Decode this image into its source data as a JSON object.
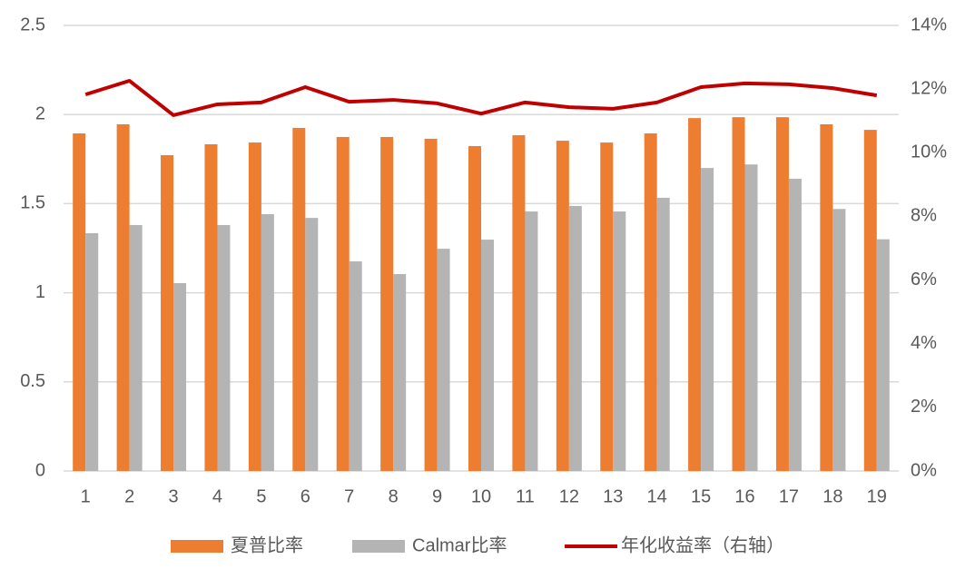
{
  "chart_data": {
    "type": "bar",
    "categories": [
      "1",
      "2",
      "3",
      "4",
      "5",
      "6",
      "7",
      "8",
      "9",
      "10",
      "11",
      "12",
      "13",
      "14",
      "15",
      "16",
      "17",
      "18",
      "19"
    ],
    "series": [
      {
        "name": "夏普比率",
        "color": "#ed7d31",
        "values": [
          1.894,
          1.945,
          1.772,
          1.833,
          1.843,
          1.925,
          1.874,
          1.874,
          1.864,
          1.823,
          1.884,
          1.853,
          1.843,
          1.894,
          1.98,
          1.985,
          1.985,
          1.945,
          1.914
        ]
      },
      {
        "name": "Calmar比率",
        "color": "#b4b4b4",
        "values": [
          1.334,
          1.38,
          1.054,
          1.38,
          1.441,
          1.42,
          1.176,
          1.105,
          1.247,
          1.298,
          1.456,
          1.487,
          1.456,
          1.533,
          1.7,
          1.72,
          1.64,
          1.47,
          1.3
        ]
      },
      {
        "name": "年化收益率（右轴）",
        "color": "#c00000",
        "type": "line",
        "axis": "y2",
        "values": [
          11.83,
          12.26,
          11.18,
          11.52,
          11.58,
          12.06,
          11.6,
          11.66,
          11.55,
          11.23,
          11.58,
          11.43,
          11.38,
          11.58,
          12.06,
          12.18,
          12.15,
          12.03,
          11.8
        ]
      }
    ],
    "ylim": [
      0,
      2.5
    ],
    "yticks": [
      0,
      0.5,
      1,
      1.5,
      2,
      2.5
    ],
    "y2lim": [
      0,
      14
    ],
    "y2ticks": [
      {
        "value": 0,
        "label": "0%"
      },
      {
        "value": 2,
        "label": "2%"
      },
      {
        "value": 4,
        "label": "4%"
      },
      {
        "value": 6,
        "label": "6%"
      },
      {
        "value": 8,
        "label": "8%"
      },
      {
        "value": 10,
        "label": "10%"
      },
      {
        "value": 12,
        "label": "12%"
      },
      {
        "value": 14,
        "label": "14%"
      }
    ],
    "grid": true,
    "legend": "bottom"
  }
}
